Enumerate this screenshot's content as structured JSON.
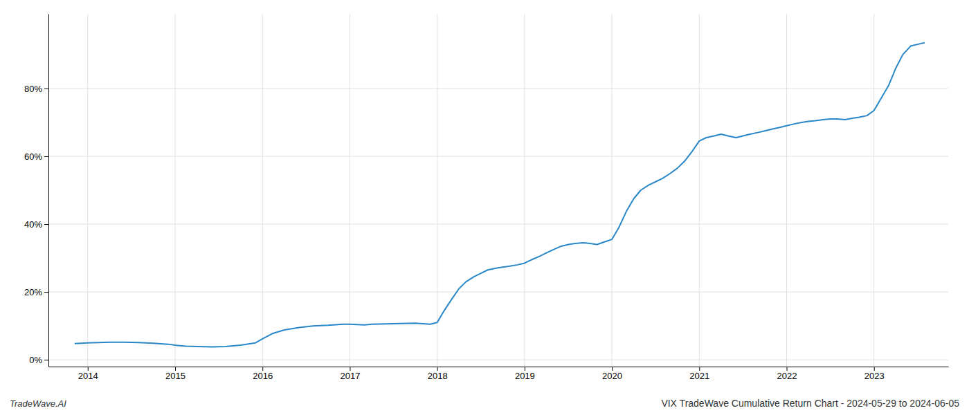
{
  "chart_data": {
    "type": "line",
    "title": "VIX TradeWave Cumulative Return Chart - 2024-05-29 to 2024-06-05",
    "annotations": [
      "TradeWave.AI"
    ],
    "x": [
      2013.85,
      2014.0,
      2014.12,
      2014.25,
      2014.42,
      2014.58,
      2014.75,
      2014.92,
      2015.0,
      2015.12,
      2015.25,
      2015.42,
      2015.58,
      2015.75,
      2015.92,
      2016.0,
      2016.12,
      2016.25,
      2016.42,
      2016.58,
      2016.75,
      2016.92,
      2017.0,
      2017.08,
      2017.17,
      2017.25,
      2017.42,
      2017.58,
      2017.75,
      2017.92,
      2018.0,
      2018.08,
      2018.17,
      2018.25,
      2018.33,
      2018.42,
      2018.5,
      2018.58,
      2018.67,
      2018.75,
      2018.83,
      2018.92,
      2019.0,
      2019.08,
      2019.17,
      2019.25,
      2019.33,
      2019.42,
      2019.5,
      2019.58,
      2019.67,
      2019.75,
      2019.83,
      2019.92,
      2020.0,
      2020.08,
      2020.17,
      2020.25,
      2020.33,
      2020.42,
      2020.5,
      2020.58,
      2020.67,
      2020.75,
      2020.83,
      2020.92,
      2021.0,
      2021.08,
      2021.17,
      2021.25,
      2021.33,
      2021.42,
      2021.5,
      2021.58,
      2021.67,
      2021.75,
      2021.83,
      2021.92,
      2022.0,
      2022.08,
      2022.17,
      2022.25,
      2022.33,
      2022.42,
      2022.5,
      2022.58,
      2022.67,
      2022.75,
      2022.83,
      2022.92,
      2023.0,
      2023.08,
      2023.17,
      2023.25,
      2023.33,
      2023.42,
      2023.5,
      2023.58
    ],
    "values": [
      4.8,
      5.0,
      5.1,
      5.2,
      5.2,
      5.1,
      4.9,
      4.6,
      4.3,
      4.0,
      3.9,
      3.8,
      3.9,
      4.3,
      5.0,
      6.2,
      7.8,
      8.8,
      9.5,
      10.0,
      10.2,
      10.5,
      10.5,
      10.4,
      10.3,
      10.5,
      10.6,
      10.7,
      10.8,
      10.5,
      11.0,
      14.5,
      18.0,
      21.0,
      23.0,
      24.5,
      25.5,
      26.5,
      27.0,
      27.3,
      27.6,
      28.0,
      28.5,
      29.5,
      30.5,
      31.5,
      32.5,
      33.5,
      34.0,
      34.3,
      34.5,
      34.3,
      34.0,
      34.8,
      35.5,
      39.0,
      44.0,
      47.5,
      50.0,
      51.5,
      52.5,
      53.5,
      55.0,
      56.5,
      58.5,
      61.5,
      64.5,
      65.5,
      66.0,
      66.5,
      66.0,
      65.5,
      66.0,
      66.5,
      67.0,
      67.5,
      68.0,
      68.5,
      69.0,
      69.5,
      70.0,
      70.3,
      70.5,
      70.8,
      71.0,
      71.0,
      70.8,
      71.2,
      71.5,
      72.0,
      73.5,
      77.0,
      81.0,
      86.0,
      90.0,
      92.5,
      93.0,
      93.5
    ],
    "color": "#2887c8",
    "xlim": [
      2013.55,
      2023.85
    ],
    "ylim": [
      -2,
      102
    ],
    "xticks": [
      2014,
      2015,
      2016,
      2017,
      2018,
      2019,
      2020,
      2021,
      2022,
      2023
    ],
    "yticks": [
      {
        "value": 0,
        "label": "0%"
      },
      {
        "value": 20,
        "label": "20%"
      },
      {
        "value": 40,
        "label": "40%"
      },
      {
        "value": 60,
        "label": "60%"
      },
      {
        "value": 80,
        "label": "80%"
      }
    ],
    "grid": true
  }
}
